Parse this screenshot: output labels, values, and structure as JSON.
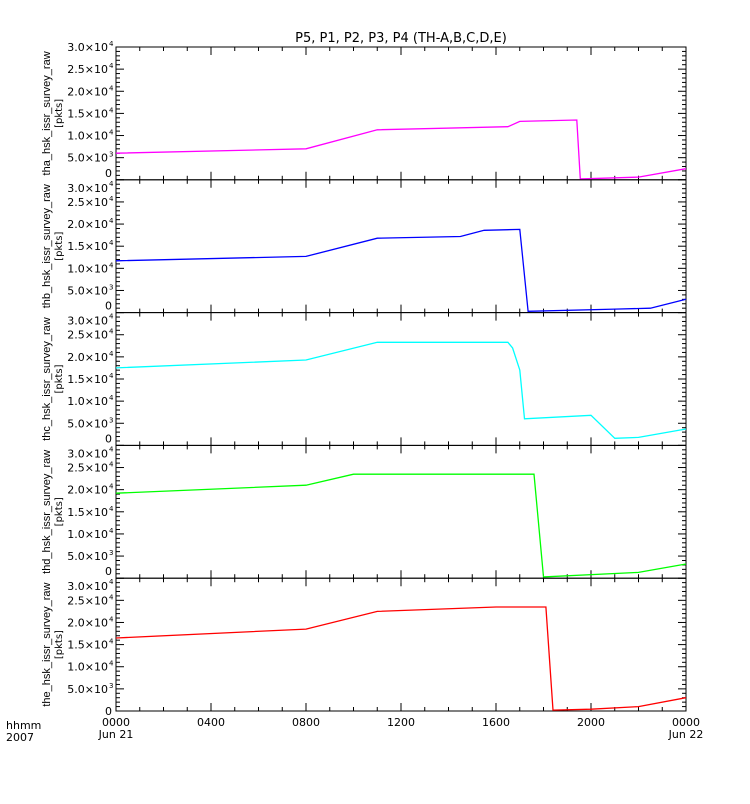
{
  "chart_data": {
    "type": "line",
    "title": "P5, P1, P2, P3, P4 (TH-A,B,C,D,E)",
    "xlabel_left": [
      "hhmm",
      "2007"
    ],
    "x_range_hours": [
      0,
      24
    ],
    "x_ticks": [
      {
        "h": 0,
        "label": "0000",
        "sub": "Jun 21"
      },
      {
        "h": 4,
        "label": "0400",
        "sub": ""
      },
      {
        "h": 8,
        "label": "0800",
        "sub": ""
      },
      {
        "h": 12,
        "label": "1200",
        "sub": ""
      },
      {
        "h": 16,
        "label": "1600",
        "sub": ""
      },
      {
        "h": 20,
        "label": "2000",
        "sub": ""
      },
      {
        "h": 24,
        "label": "0000",
        "sub": "Jun 22"
      }
    ],
    "ylim": [
      0,
      30000
    ],
    "y_ticks": [
      {
        "v": 0,
        "mant": "0",
        "exp": ""
      },
      {
        "v": 5000,
        "mant": "5.0×10",
        "exp": "3"
      },
      {
        "v": 10000,
        "mant": "1.0×10",
        "exp": "4"
      },
      {
        "v": 15000,
        "mant": "1.5×10",
        "exp": "4"
      },
      {
        "v": 20000,
        "mant": "2.0×10",
        "exp": "4"
      },
      {
        "v": 25000,
        "mant": "2.5×10",
        "exp": "4"
      },
      {
        "v": 30000,
        "mant": "3.0×10",
        "exp": "4"
      }
    ],
    "units": "[pkts]",
    "panels": [
      {
        "ylabel": "tha_hsk_issr_survey_raw",
        "color": "#ff00ff",
        "points": [
          [
            0,
            6000
          ],
          [
            8,
            7000
          ],
          [
            11,
            11300
          ],
          [
            16.5,
            12000
          ],
          [
            17,
            13200
          ],
          [
            19.4,
            13500
          ],
          [
            19.55,
            200
          ],
          [
            22,
            600
          ],
          [
            24,
            2500
          ]
        ]
      },
      {
        "ylabel": "thb_hsk_issr_survey_raw",
        "color": "#0000ff",
        "points": [
          [
            0,
            11700
          ],
          [
            8,
            12700
          ],
          [
            11,
            16800
          ],
          [
            14.5,
            17200
          ],
          [
            15.5,
            18600
          ],
          [
            17,
            18800
          ],
          [
            17.35,
            300
          ],
          [
            21,
            800
          ],
          [
            22.5,
            1000
          ],
          [
            24,
            3000
          ]
        ]
      },
      {
        "ylabel": "thc_hsk_issr_survey_raw",
        "color": "#00ffff",
        "points": [
          [
            0,
            17500
          ],
          [
            8,
            19300
          ],
          [
            11,
            23300
          ],
          [
            16.5,
            23300
          ],
          [
            16.7,
            22000
          ],
          [
            17,
            17000
          ],
          [
            17.2,
            6000
          ],
          [
            20,
            6800
          ],
          [
            21,
            1600
          ],
          [
            22,
            1800
          ],
          [
            24,
            3700
          ]
        ]
      },
      {
        "ylabel": "thd_hsk_issr_survey_raw",
        "color": "#00ff00",
        "points": [
          [
            0,
            19200
          ],
          [
            8,
            21000
          ],
          [
            10,
            23500
          ],
          [
            17.6,
            23500
          ],
          [
            18,
            300
          ],
          [
            22,
            1300
          ],
          [
            24,
            3200
          ]
        ]
      },
      {
        "ylabel": "the_hsk_issr_survey_raw",
        "color": "#ff0000",
        "points": [
          [
            0,
            16500
          ],
          [
            8,
            18500
          ],
          [
            11,
            22500
          ],
          [
            16,
            23500
          ],
          [
            18.1,
            23500
          ],
          [
            18.4,
            200
          ],
          [
            20,
            400
          ],
          [
            22,
            1000
          ],
          [
            24,
            3000
          ]
        ]
      }
    ]
  }
}
